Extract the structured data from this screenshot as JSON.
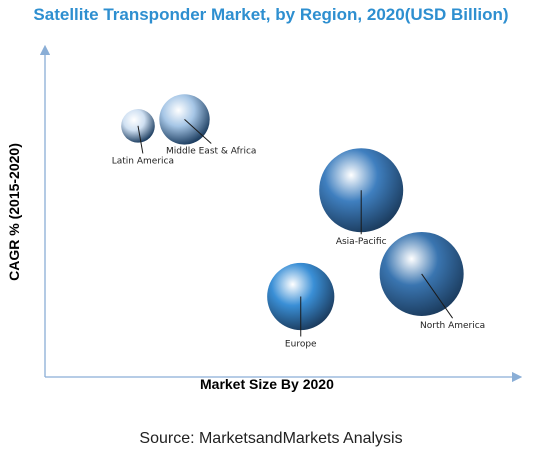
{
  "chart_data": {
    "type": "scatter",
    "title": "Satellite Transponder Market, by Region, 2020(USD Billion)",
    "xlabel": "Market Size By 2020",
    "ylabel": "CAGR % (2015-2020)",
    "grid": false,
    "points": [
      {
        "label": "Latin America",
        "x": 0.2,
        "y": 0.78,
        "size": 0.4,
        "color": "#cfe0f2"
      },
      {
        "label": "Middle East & Africa",
        "x": 0.3,
        "y": 0.8,
        "size": 0.6,
        "color": "#a6c6e6"
      },
      {
        "label": "Asia-Pacific",
        "x": 0.68,
        "y": 0.58,
        "size": 1.0,
        "color": "#3f7fbf"
      },
      {
        "label": "North America",
        "x": 0.81,
        "y": 0.32,
        "size": 1.0,
        "color": "#3a75b0"
      },
      {
        "label": "Europe",
        "x": 0.55,
        "y": 0.25,
        "size": 0.8,
        "color": "#3a8fd6"
      }
    ]
  },
  "source": "Source: MarketsandMarkets Analysis"
}
